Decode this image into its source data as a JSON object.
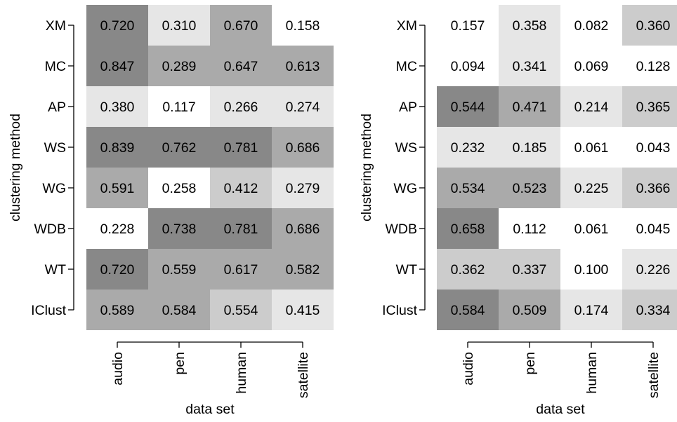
{
  "chart_data": [
    {
      "type": "heatmap",
      "xlabel": "data set",
      "ylabel": "clustering method",
      "x_categories": [
        "audio",
        "pen",
        "human",
        "satellite"
      ],
      "y_categories": [
        "XM",
        "MC",
        "AP",
        "WS",
        "WG",
        "WDB",
        "WT",
        "IClust"
      ],
      "values": [
        [
          0.72,
          0.31,
          0.67,
          0.158
        ],
        [
          0.847,
          0.289,
          0.647,
          0.613
        ],
        [
          0.38,
          0.117,
          0.266,
          0.274
        ],
        [
          0.839,
          0.762,
          0.781,
          0.686
        ],
        [
          0.591,
          0.258,
          0.412,
          0.279
        ],
        [
          0.228,
          0.738,
          0.781,
          0.686
        ],
        [
          0.72,
          0.559,
          0.617,
          0.582
        ],
        [
          0.589,
          0.584,
          0.554,
          0.415
        ]
      ],
      "labels": [
        [
          "0.720",
          "0.310",
          "0.670",
          "0.158"
        ],
        [
          "0.847",
          "0.289",
          "0.647",
          "0.613"
        ],
        [
          "0.380",
          "0.117",
          "0.266",
          "0.274"
        ],
        [
          "0.839",
          "0.762",
          "0.781",
          "0.686"
        ],
        [
          "0.591",
          "0.258",
          "0.412",
          "0.279"
        ],
        [
          "0.228",
          "0.738",
          "0.781",
          "0.686"
        ],
        [
          "0.720",
          "0.559",
          "0.617",
          "0.582"
        ],
        [
          "0.589",
          "0.584",
          "0.554",
          "0.415"
        ]
      ],
      "cell_colors": [
        [
          "#888888",
          "#e6e6e6",
          "#aaaaaa",
          "#ffffff"
        ],
        [
          "#888888",
          "#aaaaaa",
          "#aaaaaa",
          "#aaaaaa"
        ],
        [
          "#e6e6e6",
          "#ffffff",
          "#e6e6e6",
          "#e6e6e6"
        ],
        [
          "#888888",
          "#888888",
          "#888888",
          "#aaaaaa"
        ],
        [
          "#aaaaaa",
          "#ffffff",
          "#cccccc",
          "#e6e6e6"
        ],
        [
          "#ffffff",
          "#888888",
          "#888888",
          "#aaaaaa"
        ],
        [
          "#888888",
          "#aaaaaa",
          "#aaaaaa",
          "#aaaaaa"
        ],
        [
          "#aaaaaa",
          "#aaaaaa",
          "#cccccc",
          "#e6e6e6"
        ]
      ]
    },
    {
      "type": "heatmap",
      "xlabel": "data set",
      "ylabel": "clustering method",
      "x_categories": [
        "audio",
        "pen",
        "human",
        "satellite"
      ],
      "y_categories": [
        "XM",
        "MC",
        "AP",
        "WS",
        "WG",
        "WDB",
        "WT",
        "IClust"
      ],
      "values": [
        [
          0.157,
          0.358,
          0.082,
          0.36
        ],
        [
          0.094,
          0.341,
          0.069,
          0.128
        ],
        [
          0.544,
          0.471,
          0.214,
          0.365
        ],
        [
          0.232,
          0.185,
          0.061,
          0.043
        ],
        [
          0.534,
          0.523,
          0.225,
          0.366
        ],
        [
          0.658,
          0.112,
          0.061,
          0.045
        ],
        [
          0.362,
          0.337,
          0.1,
          0.226
        ],
        [
          0.584,
          0.509,
          0.174,
          0.334
        ]
      ],
      "labels": [
        [
          "0.157",
          "0.358",
          "0.082",
          "0.360"
        ],
        [
          "0.094",
          "0.341",
          "0.069",
          "0.128"
        ],
        [
          "0.544",
          "0.471",
          "0.214",
          "0.365"
        ],
        [
          "0.232",
          "0.185",
          "0.061",
          "0.043"
        ],
        [
          "0.534",
          "0.523",
          "0.225",
          "0.366"
        ],
        [
          "0.658",
          "0.112",
          "0.061",
          "0.045"
        ],
        [
          "0.362",
          "0.337",
          "0.100",
          "0.226"
        ],
        [
          "0.584",
          "0.509",
          "0.174",
          "0.334"
        ]
      ],
      "cell_colors": [
        [
          "#ffffff",
          "#e6e6e6",
          "#ffffff",
          "#cccccc"
        ],
        [
          "#ffffff",
          "#e6e6e6",
          "#ffffff",
          "#ffffff"
        ],
        [
          "#888888",
          "#aaaaaa",
          "#e6e6e6",
          "#cccccc"
        ],
        [
          "#e6e6e6",
          "#e6e6e6",
          "#ffffff",
          "#ffffff"
        ],
        [
          "#aaaaaa",
          "#aaaaaa",
          "#e6e6e6",
          "#cccccc"
        ],
        [
          "#888888",
          "#ffffff",
          "#ffffff",
          "#ffffff"
        ],
        [
          "#cccccc",
          "#cccccc",
          "#ffffff",
          "#e6e6e6"
        ],
        [
          "#888888",
          "#aaaaaa",
          "#e6e6e6",
          "#cccccc"
        ]
      ]
    }
  ]
}
